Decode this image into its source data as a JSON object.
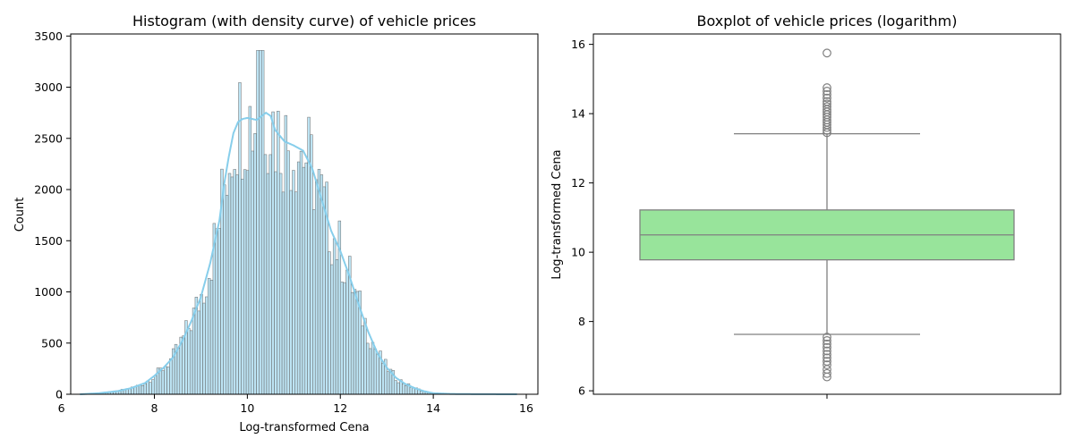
{
  "chart_data": [
    {
      "type": "bar",
      "title": "Histogram (with density curve) of vehicle prices",
      "xlabel": "Log-transformed Cena",
      "ylabel": "Count",
      "xlim": [
        6.2,
        16.25
      ],
      "ylim": [
        0,
        3520
      ],
      "xticks": [
        6,
        8,
        10,
        12,
        14,
        16
      ],
      "yticks": [
        0,
        500,
        1000,
        1500,
        2000,
        2500,
        3000,
        3500
      ],
      "grid": false,
      "bar_color": "#87ceeb",
      "curve_color": "#87ceeb",
      "bin_start": 6.4,
      "bin_width": 0.055,
      "density_curve": {
        "x": [
          6.4,
          6.8,
          7.2,
          7.5,
          7.8,
          8.0,
          8.2,
          8.4,
          8.6,
          8.8,
          9.0,
          9.2,
          9.4,
          9.5,
          9.6,
          9.7,
          9.8,
          9.9,
          10.0,
          10.2,
          10.4,
          10.5,
          10.6,
          10.8,
          11.0,
          11.2,
          11.4,
          11.6,
          11.8,
          12.0,
          12.2,
          12.4,
          12.6,
          12.8,
          13.0,
          13.2,
          13.4,
          13.6,
          13.8,
          14.0,
          14.4,
          15.0,
          15.8
        ],
        "y": [
          0,
          10,
          30,
          60,
          110,
          180,
          260,
          360,
          520,
          720,
          950,
          1280,
          1700,
          2050,
          2320,
          2550,
          2660,
          2690,
          2700,
          2680,
          2750,
          2720,
          2580,
          2470,
          2430,
          2380,
          2200,
          1900,
          1600,
          1400,
          1150,
          870,
          610,
          400,
          260,
          160,
          100,
          60,
          30,
          10,
          3,
          1,
          0
        ]
      }
    },
    {
      "type": "box",
      "title": "Boxplot of vehicle prices (logarithm)",
      "xlabel": "",
      "ylabel": "Log-transformed Cena",
      "ylim": [
        5.9,
        16.3
      ],
      "yticks": [
        6,
        8,
        10,
        12,
        14,
        16
      ],
      "grid": false,
      "box_color": "#98e49b",
      "line_color": "#808080",
      "q1": 9.78,
      "median": 10.5,
      "q3": 11.22,
      "whisker_low": 7.63,
      "whisker_high": 13.42,
      "outliers_high": [
        13.45,
        13.52,
        13.6,
        13.68,
        13.75,
        13.82,
        13.9,
        13.97,
        14.05,
        14.12,
        14.2,
        14.28,
        14.35,
        14.45,
        14.55,
        14.65,
        14.75,
        15.75
      ],
      "outliers_low": [
        7.55,
        7.45,
        7.35,
        7.25,
        7.15,
        7.05,
        6.95,
        6.85,
        6.75,
        6.62,
        6.5,
        6.4
      ]
    }
  ]
}
